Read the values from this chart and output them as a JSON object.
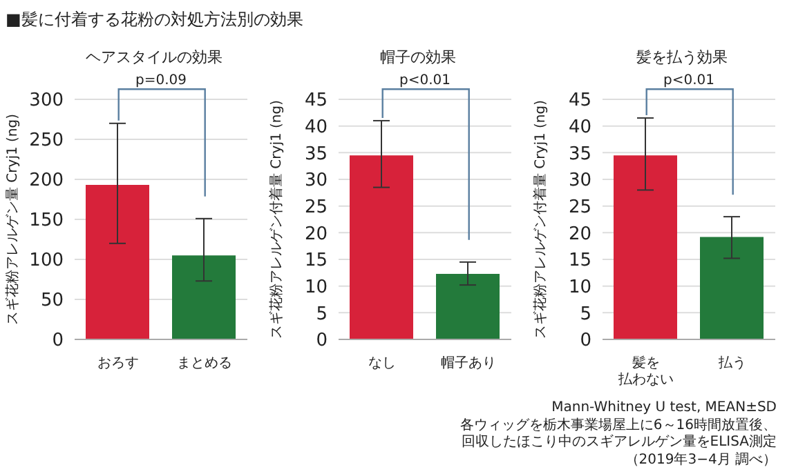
{
  "chart_data": [
    {
      "type": "bar",
      "title": "ヘアスタイルの効果",
      "ylabel": "スギ花粉アレルゲン量 Cryj1 (ng)",
      "categories": [
        "おろす",
        "まとめる"
      ],
      "values": [
        193,
        105
      ],
      "colors": [
        "#d7223a",
        "#237a3b"
      ],
      "errors": [
        [
          120,
          270
        ],
        [
          73,
          151
        ]
      ],
      "ylim": [
        0,
        300
      ],
      "yticks": [
        0,
        50,
        100,
        150,
        200,
        250,
        300
      ],
      "grid": "y",
      "annotations": [
        "p=0.09",
        "■髪に付着する花粉の対処方法別の効果"
      ]
    },
    {
      "type": "bar",
      "title": "帽子の効果",
      "ylabel": "スギ花粉アレルゲン付着量 Cryj1 (ng)",
      "categories": [
        "なし",
        "帽子あり"
      ],
      "values": [
        34.5,
        12.3
      ],
      "colors": [
        "#d7223a",
        "#237a3b"
      ],
      "errors": [
        [
          28.5,
          41
        ],
        [
          10.2,
          14.5
        ]
      ],
      "ylim": [
        0,
        45
      ],
      "yticks": [
        0,
        5,
        10,
        15,
        20,
        25,
        30,
        35,
        40,
        45
      ],
      "grid": "y",
      "annotations": [
        "p<0.01"
      ]
    },
    {
      "type": "bar",
      "title": "髪を払う効果",
      "ylabel": "スギ花粉アレルゲン付着量 Cryj1 (ng)",
      "categories": [
        "髪を払わない",
        "払う"
      ],
      "values": [
        34.5,
        19.2
      ],
      "colors": [
        "#d7223a",
        "#237a3b"
      ],
      "errors": [
        [
          28,
          41.5
        ],
        [
          15.2,
          23
        ]
      ],
      "ylim": [
        0,
        45
      ],
      "yticks": [
        0,
        5,
        10,
        15,
        20,
        25,
        30,
        35,
        40,
        45
      ],
      "grid": "y",
      "annotations": [
        "p<0.01",
        "Mann-Whitney U test, MEAN±SD",
        "各ウィッグを栃木事業場屋上に6～16時間放置後、",
        "回収したほこり中のスギアレルゲン量をELISA測定",
        "（2019年3−4月 調べ）"
      ]
    }
  ]
}
